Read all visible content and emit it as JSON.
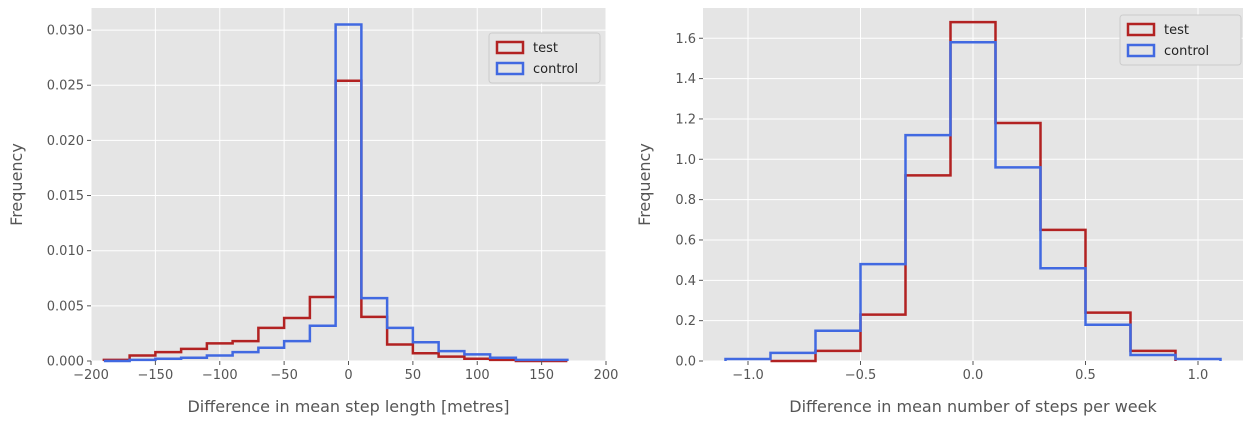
{
  "chart_data": [
    {
      "type": "histogram",
      "xlabel": "Difference in mean step length [metres]",
      "ylabel": "Frequency",
      "xlim": [
        -200,
        200
      ],
      "ylim": [
        0,
        0.032
      ],
      "xticks": [
        -200,
        -150,
        -100,
        -50,
        0,
        50,
        100,
        150,
        200
      ],
      "xtick_labels": [
        "−200",
        "−150",
        "−100",
        "−50",
        "0",
        "50",
        "100",
        "150",
        "200"
      ],
      "yticks": [
        0,
        0.005,
        0.01,
        0.015,
        0.02,
        0.025,
        0.03
      ],
      "ytick_labels": [
        "0.000",
        "0.005",
        "0.010",
        "0.015",
        "0.020",
        "0.025",
        "0.030"
      ],
      "grid": true,
      "legend_position": "top-right",
      "series": [
        {
          "name": "test",
          "color": "#b22222",
          "bin_edges": [
            -190,
            -170,
            -150,
            -130,
            -110,
            -90,
            -70,
            -50,
            -30,
            -10,
            10,
            30,
            50,
            70,
            90,
            110,
            130,
            150,
            170
          ],
          "values": [
            0.0001,
            0.0005,
            0.0008,
            0.0011,
            0.0016,
            0.0018,
            0.003,
            0.0039,
            0.0058,
            0.0254,
            0.004,
            0.0015,
            0.0007,
            0.0004,
            0.0002,
            0.0001,
            0.0,
            0.0
          ]
        },
        {
          "name": "control",
          "color": "#4169e1",
          "bin_edges": [
            -190,
            -170,
            -150,
            -130,
            -110,
            -90,
            -70,
            -50,
            -30,
            -10,
            10,
            30,
            50,
            70,
            90,
            110,
            130,
            150,
            170
          ],
          "values": [
            0.0,
            0.0001,
            0.0002,
            0.0003,
            0.0005,
            0.0008,
            0.0012,
            0.0018,
            0.0032,
            0.0305,
            0.0057,
            0.003,
            0.0017,
            0.0009,
            0.0006,
            0.0003,
            0.0001,
            0.0001
          ]
        }
      ]
    },
    {
      "type": "histogram",
      "xlabel": "Difference in mean number of steps per week",
      "ylabel": "Frequency",
      "xlim": [
        -1.2,
        1.2
      ],
      "ylim": [
        0,
        1.75
      ],
      "xticks": [
        -1.0,
        -0.5,
        0.0,
        0.5,
        1.0
      ],
      "xtick_labels": [
        "−1.0",
        "−0.5",
        "0.0",
        "0.5",
        "1.0"
      ],
      "yticks": [
        0.0,
        0.2,
        0.4,
        0.6,
        0.8,
        1.0,
        1.2,
        1.4,
        1.6
      ],
      "ytick_labels": [
        "0.0",
        "0.2",
        "0.4",
        "0.6",
        "0.8",
        "1.0",
        "1.2",
        "1.4",
        "1.6"
      ],
      "grid": true,
      "legend_position": "top-right",
      "series": [
        {
          "name": "test",
          "color": "#b22222",
          "bin_edges": [
            -0.9,
            -0.7,
            -0.5,
            -0.3,
            -0.1,
            0.1,
            0.3,
            0.5,
            0.7,
            0.9
          ],
          "values": [
            0.0,
            0.05,
            0.23,
            0.92,
            1.68,
            1.18,
            0.65,
            0.24,
            0.05
          ]
        },
        {
          "name": "control",
          "color": "#4169e1",
          "bin_edges": [
            -1.1,
            -0.9,
            -0.7,
            -0.5,
            -0.3,
            -0.1,
            0.1,
            0.3,
            0.5,
            0.7,
            0.9,
            1.1
          ],
          "values": [
            0.01,
            0.04,
            0.15,
            0.48,
            1.12,
            1.58,
            0.96,
            0.46,
            0.18,
            0.03,
            0.01
          ]
        }
      ]
    }
  ]
}
